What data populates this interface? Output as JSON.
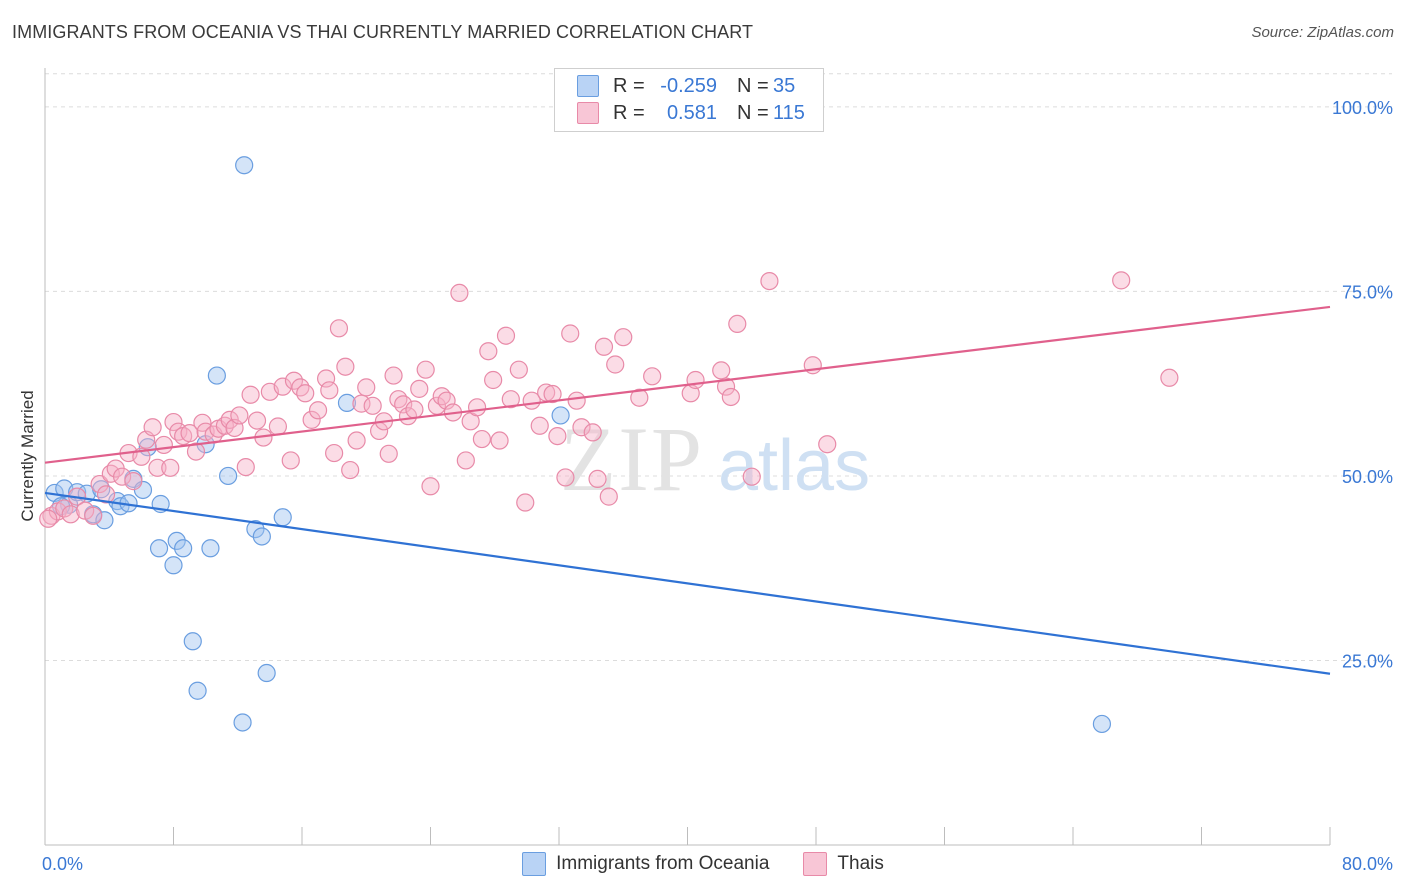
{
  "title": "IMMIGRANTS FROM OCEANIA VS THAI CURRENTLY MARRIED CORRELATION CHART",
  "source": "Source: ZipAtlas.com",
  "watermark": {
    "zip": "ZIP",
    "atlas": "atlas"
  },
  "legend_top": [
    {
      "r_label": "R =",
      "r_value": "-0.259",
      "n_label": "N =",
      "n_value": "35",
      "color": "#b9d3f5",
      "border": "#6a9ee0"
    },
    {
      "r_label": "R =",
      "r_value": "0.581",
      "n_label": "N =",
      "n_value": "115",
      "color": "#f8c6d6",
      "border": "#e88aa8"
    }
  ],
  "legend_bottom": [
    {
      "label": "Immigrants from Oceania",
      "color": "#b9d3f5",
      "border": "#6a9ee0"
    },
    {
      "label": "Thais",
      "color": "#f8c6d6",
      "border": "#e88aa8"
    }
  ],
  "chart_data": {
    "type": "scatter",
    "title": "IMMIGRANTS FROM OCEANIA VS THAI CURRENTLY MARRIED CORRELATION CHART",
    "xlabel": "",
    "ylabel": "Currently Married",
    "xlim": [
      0,
      80
    ],
    "ylim": [
      0,
      105
    ],
    "x_tick_labels": [
      {
        "value": 0,
        "label": "0.0%"
      },
      {
        "value": 80,
        "label": "80.0%"
      }
    ],
    "y_tick_labels": [
      {
        "value": 25,
        "label": "25.0%"
      },
      {
        "value": 50,
        "label": "50.0%"
      },
      {
        "value": 75,
        "label": "75.0%"
      },
      {
        "value": 100,
        "label": "100.0%"
      }
    ],
    "gridlines": "horizontal-dashed",
    "series": [
      {
        "name": "Immigrants from Oceania",
        "color": "#6a9ee0",
        "fill": "rgba(160,196,240,0.45)",
        "trend": {
          "x": [
            0,
            80
          ],
          "y": [
            47.7,
            23.2
          ],
          "color": "#2f72d4"
        },
        "points": [
          [
            0.6,
            47.7
          ],
          [
            1.2,
            48.3
          ],
          [
            1.5,
            46.1
          ],
          [
            2.0,
            47.8
          ],
          [
            2.6,
            47.6
          ],
          [
            1.0,
            45.9
          ],
          [
            3.0,
            44.8
          ],
          [
            3.5,
            48.2
          ],
          [
            3.7,
            44.0
          ],
          [
            4.5,
            46.6
          ],
          [
            4.7,
            45.9
          ],
          [
            5.2,
            46.3
          ],
          [
            5.5,
            49.6
          ],
          [
            6.1,
            48.1
          ],
          [
            6.4,
            53.9
          ],
          [
            7.2,
            46.2
          ],
          [
            7.1,
            40.2
          ],
          [
            8.0,
            37.9
          ],
          [
            8.2,
            41.2
          ],
          [
            8.6,
            40.2
          ],
          [
            9.2,
            27.6
          ],
          [
            9.5,
            20.9
          ],
          [
            10.0,
            54.3
          ],
          [
            10.3,
            40.2
          ],
          [
            10.7,
            63.6
          ],
          [
            11.4,
            50.0
          ],
          [
            12.3,
            16.6
          ],
          [
            12.4,
            92.1
          ],
          [
            13.1,
            42.8
          ],
          [
            13.5,
            41.8
          ],
          [
            13.8,
            23.3
          ],
          [
            14.8,
            44.4
          ],
          [
            18.8,
            59.9
          ],
          [
            32.1,
            58.2
          ],
          [
            65.8,
            16.4
          ]
        ]
      },
      {
        "name": "Thais",
        "color": "#e88aa8",
        "fill": "rgba(246,178,200,0.45)",
        "trend": {
          "x": [
            0,
            80
          ],
          "y": [
            51.8,
            72.9
          ],
          "color": "#e0608c"
        },
        "points": [
          [
            0.4,
            44.6
          ],
          [
            0.8,
            45.2
          ],
          [
            1.2,
            45.6
          ],
          [
            1.6,
            44.8
          ],
          [
            2.0,
            47.2
          ],
          [
            2.5,
            45.3
          ],
          [
            3.0,
            44.6
          ],
          [
            3.4,
            48.9
          ],
          [
            3.8,
            47.5
          ],
          [
            4.1,
            50.3
          ],
          [
            4.4,
            51.0
          ],
          [
            4.8,
            49.9
          ],
          [
            5.2,
            53.1
          ],
          [
            5.5,
            49.3
          ],
          [
            6.0,
            52.6
          ],
          [
            6.3,
            54.9
          ],
          [
            6.7,
            56.6
          ],
          [
            7.0,
            51.1
          ],
          [
            7.4,
            54.2
          ],
          [
            7.8,
            51.1
          ],
          [
            8.0,
            57.3
          ],
          [
            8.3,
            56.0
          ],
          [
            8.6,
            55.4
          ],
          [
            9.0,
            55.8
          ],
          [
            9.4,
            53.3
          ],
          [
            9.8,
            57.2
          ],
          [
            10.0,
            56.0
          ],
          [
            10.5,
            55.6
          ],
          [
            10.8,
            56.4
          ],
          [
            11.2,
            56.8
          ],
          [
            11.5,
            57.6
          ],
          [
            11.8,
            56.5
          ],
          [
            12.1,
            58.2
          ],
          [
            12.5,
            51.2
          ],
          [
            12.8,
            61.0
          ],
          [
            13.2,
            57.5
          ],
          [
            13.6,
            55.2
          ],
          [
            14.0,
            61.4
          ],
          [
            14.5,
            56.7
          ],
          [
            14.8,
            62.1
          ],
          [
            15.3,
            52.1
          ],
          [
            15.5,
            62.9
          ],
          [
            15.9,
            62.0
          ],
          [
            16.2,
            61.2
          ],
          [
            16.6,
            57.6
          ],
          [
            17.0,
            58.9
          ],
          [
            17.5,
            63.2
          ],
          [
            17.7,
            61.6
          ],
          [
            18.0,
            53.1
          ],
          [
            18.3,
            70.0
          ],
          [
            18.7,
            64.8
          ],
          [
            19.0,
            50.8
          ],
          [
            19.4,
            54.8
          ],
          [
            19.7,
            59.8
          ],
          [
            20.0,
            62.0
          ],
          [
            20.4,
            59.5
          ],
          [
            20.8,
            56.1
          ],
          [
            21.1,
            57.4
          ],
          [
            21.4,
            53.0
          ],
          [
            21.7,
            63.6
          ],
          [
            22.0,
            60.4
          ],
          [
            22.3,
            59.7
          ],
          [
            22.6,
            58.1
          ],
          [
            23.0,
            59.0
          ],
          [
            23.3,
            61.8
          ],
          [
            23.7,
            64.4
          ],
          [
            24.0,
            48.6
          ],
          [
            24.4,
            59.5
          ],
          [
            24.7,
            60.8
          ],
          [
            25.0,
            60.2
          ],
          [
            25.4,
            58.6
          ],
          [
            25.8,
            74.8
          ],
          [
            26.2,
            52.1
          ],
          [
            26.5,
            57.4
          ],
          [
            26.9,
            59.3
          ],
          [
            27.2,
            55.0
          ],
          [
            27.6,
            66.9
          ],
          [
            27.9,
            63.0
          ],
          [
            28.3,
            54.8
          ],
          [
            28.7,
            69.0
          ],
          [
            29.0,
            60.4
          ],
          [
            29.5,
            64.4
          ],
          [
            29.9,
            46.4
          ],
          [
            30.3,
            60.2
          ],
          [
            30.8,
            56.8
          ],
          [
            31.2,
            61.3
          ],
          [
            31.6,
            61.1
          ],
          [
            31.9,
            55.4
          ],
          [
            32.4,
            49.8
          ],
          [
            32.7,
            69.3
          ],
          [
            33.1,
            60.2
          ],
          [
            33.4,
            56.6
          ],
          [
            34.1,
            55.9
          ],
          [
            34.4,
            49.6
          ],
          [
            34.8,
            67.5
          ],
          [
            35.1,
            47.2
          ],
          [
            35.5,
            65.1
          ],
          [
            36.0,
            68.8
          ],
          [
            37.0,
            60.6
          ],
          [
            37.8,
            63.5
          ],
          [
            40.2,
            61.2
          ],
          [
            40.5,
            63.0
          ],
          [
            42.1,
            64.3
          ],
          [
            42.4,
            62.1
          ],
          [
            42.7,
            60.7
          ],
          [
            43.1,
            70.6
          ],
          [
            44.0,
            49.9
          ],
          [
            45.1,
            76.4
          ],
          [
            47.8,
            65.0
          ],
          [
            48.7,
            54.3
          ],
          [
            67.0,
            76.5
          ],
          [
            70.0,
            63.3
          ],
          [
            0.2,
            44.2
          ]
        ]
      }
    ]
  }
}
